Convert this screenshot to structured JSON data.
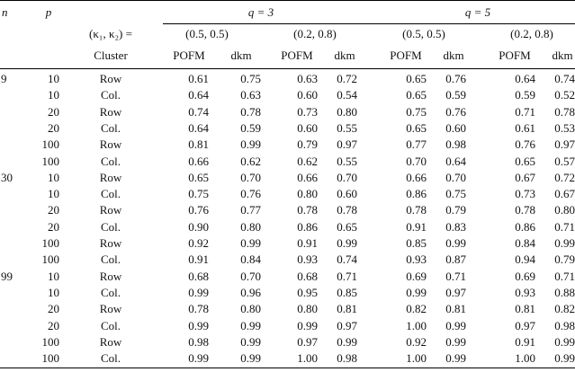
{
  "header": {
    "n": "n",
    "p": "p",
    "kappa": "(κ₁, κ₂) =",
    "cluster": "Cluster",
    "q_groups": [
      "q = 3",
      "q = 5"
    ],
    "pairs": [
      "(0.5, 0.5)",
      "(0.2, 0.8)",
      "(0.5, 0.5)",
      "(0.2, 0.8)"
    ],
    "metrics": [
      "POFM",
      "dkm",
      "POFM",
      "dkm",
      "POFM",
      "dkm",
      "POFM",
      "dkm"
    ]
  },
  "rows": [
    {
      "n": "9",
      "p": "10",
      "cluster": "Row",
      "v": [
        "0.61",
        "0.75",
        "0.63",
        "0.72",
        "0.65",
        "0.76",
        "0.64",
        "0.74"
      ]
    },
    {
      "n": "",
      "p": "10",
      "cluster": "Col.",
      "v": [
        "0.64",
        "0.63",
        "0.60",
        "0.54",
        "0.65",
        "0.59",
        "0.59",
        "0.52"
      ]
    },
    {
      "n": "",
      "p": "20",
      "cluster": "Row",
      "v": [
        "0.74",
        "0.78",
        "0.73",
        "0.80",
        "0.75",
        "0.76",
        "0.71",
        "0.78"
      ]
    },
    {
      "n": "",
      "p": "20",
      "cluster": "Col.",
      "v": [
        "0.64",
        "0.59",
        "0.60",
        "0.55",
        "0.65",
        "0.60",
        "0.61",
        "0.53"
      ]
    },
    {
      "n": "",
      "p": "100",
      "cluster": "Row",
      "v": [
        "0.81",
        "0.99",
        "0.79",
        "0.97",
        "0.77",
        "0.98",
        "0.76",
        "0.97"
      ]
    },
    {
      "n": "",
      "p": "100",
      "cluster": "Col.",
      "v": [
        "0.66",
        "0.62",
        "0.62",
        "0.55",
        "0.70",
        "0.64",
        "0.65",
        "0.57"
      ]
    },
    {
      "n": "30",
      "p": "10",
      "cluster": "Row",
      "v": [
        "0.65",
        "0.70",
        "0.66",
        "0.70",
        "0.66",
        "0.70",
        "0.67",
        "0.72"
      ]
    },
    {
      "n": "",
      "p": "10",
      "cluster": "Col.",
      "v": [
        "0.75",
        "0.76",
        "0.80",
        "0.60",
        "0.86",
        "0.75",
        "0.73",
        "0.67"
      ]
    },
    {
      "n": "",
      "p": "20",
      "cluster": "Row",
      "v": [
        "0.76",
        "0.77",
        "0.78",
        "0.78",
        "0.78",
        "0.79",
        "0.78",
        "0.80"
      ]
    },
    {
      "n": "",
      "p": "20",
      "cluster": "Col.",
      "v": [
        "0.90",
        "0.80",
        "0.86",
        "0.65",
        "0.91",
        "0.83",
        "0.86",
        "0.71"
      ]
    },
    {
      "n": "",
      "p": "100",
      "cluster": "Row",
      "v": [
        "0.92",
        "0.99",
        "0.91",
        "0.99",
        "0.85",
        "0.99",
        "0.84",
        "0.99"
      ]
    },
    {
      "n": "",
      "p": "100",
      "cluster": "Col.",
      "v": [
        "0.91",
        "0.84",
        "0.93",
        "0.74",
        "0.93",
        "0.87",
        "0.94",
        "0.79"
      ]
    },
    {
      "n": "99",
      "p": "10",
      "cluster": "Row",
      "v": [
        "0.68",
        "0.70",
        "0.68",
        "0.71",
        "0.69",
        "0.71",
        "0.69",
        "0.71"
      ]
    },
    {
      "n": "",
      "p": "10",
      "cluster": "Col.",
      "v": [
        "0.99",
        "0.96",
        "0.95",
        "0.85",
        "0.99",
        "0.97",
        "0.93",
        "0.88"
      ]
    },
    {
      "n": "",
      "p": "20",
      "cluster": "Row",
      "v": [
        "0.78",
        "0.80",
        "0.80",
        "0.81",
        "0.82",
        "0.81",
        "0.81",
        "0.82"
      ]
    },
    {
      "n": "",
      "p": "20",
      "cluster": "Col.",
      "v": [
        "0.99",
        "0.99",
        "0.99",
        "0.97",
        "1.00",
        "0.99",
        "0.97",
        "0.98"
      ]
    },
    {
      "n": "",
      "p": "100",
      "cluster": "Row",
      "v": [
        "0.98",
        "0.99",
        "0.97",
        "0.99",
        "0.92",
        "0.99",
        "0.91",
        "0.99"
      ]
    },
    {
      "n": "",
      "p": "100",
      "cluster": "Col.",
      "v": [
        "0.99",
        "0.99",
        "1.00",
        "0.98",
        "1.00",
        "0.99",
        "1.00",
        "0.99"
      ]
    }
  ]
}
